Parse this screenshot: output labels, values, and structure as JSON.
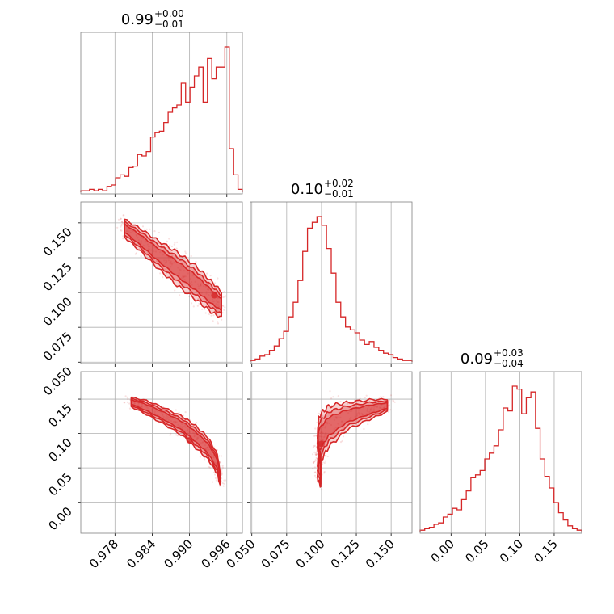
{
  "chart_data": {
    "type": "corner",
    "color": "#d62728",
    "parameters": [
      {
        "range": [
          0.9725,
          0.9985
        ],
        "ticks": [
          "0.978",
          "0.984",
          "0.990",
          "0.996"
        ],
        "tick_values": [
          0.978,
          0.984,
          0.99,
          0.996
        ],
        "title": {
          "median": "0.99",
          "plus": "+0.00",
          "minus": "−0.01"
        },
        "histogram": [
          0.01,
          0.01,
          0.02,
          0.01,
          0.02,
          0.01,
          0.04,
          0.05,
          0.1,
          0.12,
          0.11,
          0.17,
          0.18,
          0.26,
          0.25,
          0.28,
          0.38,
          0.41,
          0.42,
          0.48,
          0.55,
          0.58,
          0.6,
          0.75,
          0.62,
          0.72,
          0.8,
          0.86,
          0.62,
          0.92,
          0.78,
          0.86,
          0.86,
          1.0,
          0.3,
          0.12,
          0.02
        ]
      },
      {
        "range": [
          0.049,
          0.165
        ],
        "ticks": [
          "0.050",
          "0.075",
          "0.100",
          "0.125",
          "0.150"
        ],
        "tick_values": [
          0.05,
          0.075,
          0.1,
          0.125,
          0.15
        ],
        "title": {
          "median": "0.10",
          "plus": "+0.02",
          "minus": "−0.01"
        },
        "histogram": [
          0.01,
          0.02,
          0.04,
          0.05,
          0.08,
          0.11,
          0.16,
          0.21,
          0.31,
          0.41,
          0.56,
          0.76,
          0.92,
          0.96,
          1.0,
          0.94,
          0.78,
          0.61,
          0.41,
          0.31,
          0.24,
          0.22,
          0.2,
          0.15,
          0.12,
          0.14,
          0.1,
          0.08,
          0.06,
          0.05,
          0.03,
          0.02,
          0.01,
          0.01
        ]
      },
      {
        "range": [
          -0.045,
          0.19
        ],
        "ticks": [
          "0.00",
          "0.05",
          "0.10",
          "0.15"
        ],
        "tick_values": [
          0.0,
          0.05,
          0.1,
          0.15
        ],
        "title": {
          "median": "0.09",
          "plus": "+0.03",
          "minus": "−0.04"
        },
        "histogram": [
          0.01,
          0.02,
          0.03,
          0.05,
          0.06,
          0.1,
          0.12,
          0.16,
          0.15,
          0.22,
          0.28,
          0.37,
          0.39,
          0.42,
          0.5,
          0.54,
          0.59,
          0.7,
          0.85,
          0.83,
          1.0,
          0.98,
          0.81,
          0.92,
          0.96,
          0.71,
          0.5,
          0.38,
          0.3,
          0.2,
          0.13,
          0.08,
          0.04,
          0.02,
          0.01
        ]
      }
    ],
    "pairs": [
      {
        "x_param": 0,
        "y_param": 1,
        "ridge": [
          [
            0.979,
            0.148
          ],
          [
            0.982,
            0.138
          ],
          [
            0.985,
            0.127
          ],
          [
            0.988,
            0.117
          ],
          [
            0.991,
            0.107
          ],
          [
            0.9935,
            0.097
          ],
          [
            0.9955,
            0.09
          ]
        ],
        "width_y": [
          0.006,
          0.008,
          0.01,
          0.012,
          0.012,
          0.011,
          0.009
        ],
        "peak": [
          0.994,
          0.098
        ]
      },
      {
        "x_param": 0,
        "y_param": 2,
        "ridge": [
          [
            0.98,
            0.148
          ],
          [
            0.983,
            0.138
          ],
          [
            0.986,
            0.125
          ],
          [
            0.989,
            0.11
          ],
          [
            0.991,
            0.095
          ],
          [
            0.993,
            0.078
          ],
          [
            0.9945,
            0.055
          ],
          [
            0.995,
            0.03
          ]
        ],
        "width_y": [
          0.006,
          0.01,
          0.012,
          0.014,
          0.016,
          0.016,
          0.014,
          0.01
        ],
        "peak": [
          0.99,
          0.09
        ]
      },
      {
        "x_param": 1,
        "y_param": 2,
        "ridge": [
          [
            0.1,
            0.04
          ],
          [
            0.097,
            0.065
          ],
          [
            0.098,
            0.09
          ],
          [
            0.105,
            0.11
          ],
          [
            0.118,
            0.125
          ],
          [
            0.135,
            0.135
          ],
          [
            0.15,
            0.142
          ]
        ],
        "width_y": [
          0.02,
          0.03,
          0.035,
          0.03,
          0.02,
          0.014,
          0.008
        ],
        "peak": [
          0.1,
          0.085
        ]
      }
    ]
  }
}
